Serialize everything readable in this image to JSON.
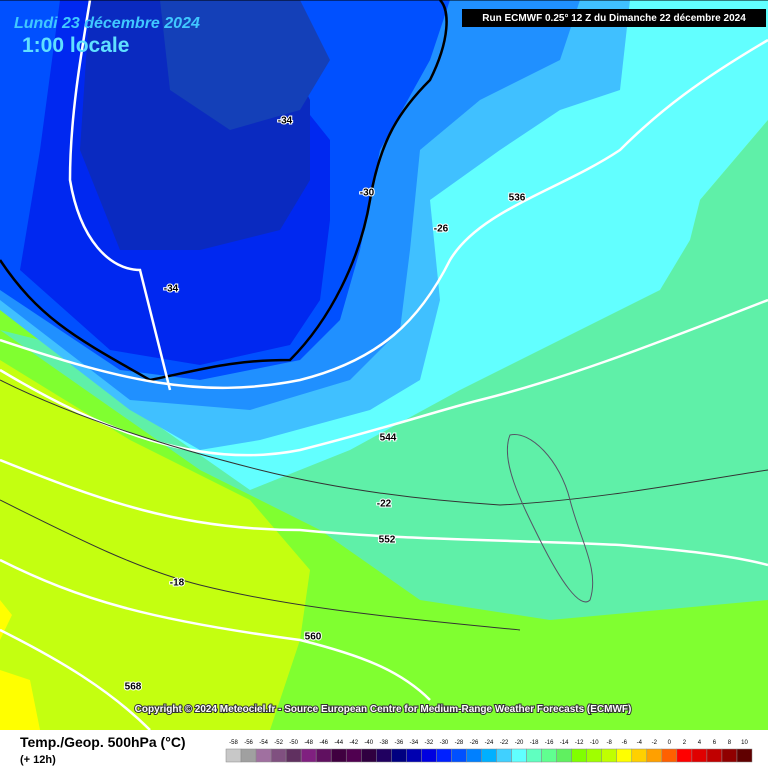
{
  "header": {
    "date": "Lundi 23 décembre 2024",
    "time": "1:00 locale",
    "run": "Run ECMWF 0.25° 12 Z du Dimanche 22 décembre 2024"
  },
  "contour_labels": [
    -34,
    -34,
    -30,
    -26,
    536,
    544,
    -22,
    552,
    -18,
    560,
    568
  ],
  "copyright": "Copyright © 2024 Meteociel.fr - Source European Centre for Medium-Range Weather Forecasts (ECMWF)",
  "legend": {
    "title": "Temp./Geop. 500hPa (°C)",
    "step": "(+ 12h)",
    "scale": [
      {
        "value": -58,
        "color": "#c8c8c8"
      },
      {
        "value": -56,
        "color": "#a0a0a0"
      },
      {
        "value": -54,
        "color": "#a070a0"
      },
      {
        "value": -52,
        "color": "#805080"
      },
      {
        "value": -50,
        "color": "#603060"
      },
      {
        "value": -48,
        "color": "#802080"
      },
      {
        "value": -46,
        "color": "#601060"
      },
      {
        "value": -44,
        "color": "#400040"
      },
      {
        "value": -42,
        "color": "#500050"
      },
      {
        "value": -40,
        "color": "#300040"
      },
      {
        "value": -38,
        "color": "#200060"
      },
      {
        "value": -36,
        "color": "#000080"
      },
      {
        "value": -34,
        "color": "#0000b0"
      },
      {
        "value": -32,
        "color": "#0000e0"
      },
      {
        "value": -30,
        "color": "#0020ff"
      },
      {
        "value": -28,
        "color": "#0050ff"
      },
      {
        "value": -26,
        "color": "#0080ff"
      },
      {
        "value": -24,
        "color": "#00b0ff"
      },
      {
        "value": -22,
        "color": "#40d0ff"
      },
      {
        "value": -20,
        "color": "#60ffff"
      },
      {
        "value": -18,
        "color": "#60ffc0"
      },
      {
        "value": -16,
        "color": "#60ff90"
      },
      {
        "value": -14,
        "color": "#60f060"
      },
      {
        "value": -12,
        "color": "#80ff00"
      },
      {
        "value": -10,
        "color": "#a0ff00"
      },
      {
        "value": -8,
        "color": "#c0ff00"
      },
      {
        "value": -6,
        "color": "#ffff00"
      },
      {
        "value": -4,
        "color": "#ffd000"
      },
      {
        "value": -2,
        "color": "#ffa000"
      },
      {
        "value": 0,
        "color": "#ff6000"
      },
      {
        "value": 2,
        "color": "#ff0000"
      },
      {
        "value": 4,
        "color": "#e00000"
      },
      {
        "value": 6,
        "color": "#c00000"
      },
      {
        "value": 8,
        "color": "#900000"
      },
      {
        "value": 10,
        "color": "#600000"
      }
    ]
  }
}
